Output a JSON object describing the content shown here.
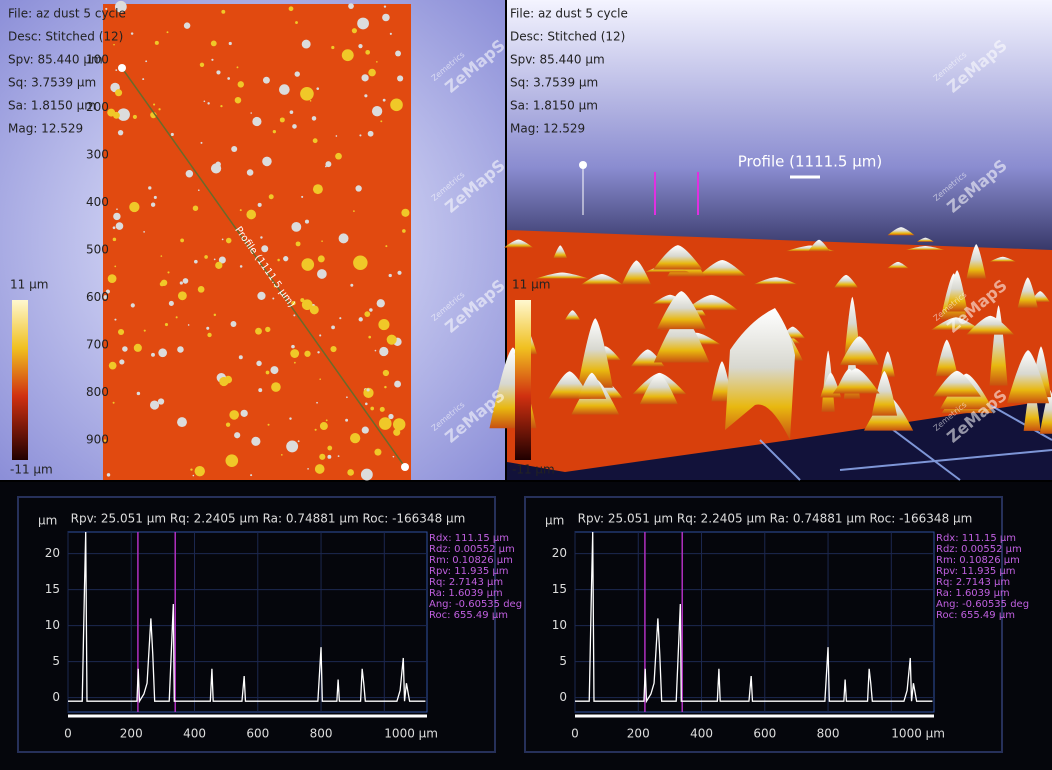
{
  "map_view": {
    "info": [
      "File: az dust 5 cycle",
      "Desc: Stitched (12)",
      "Spv: 85.440 µm",
      "Sq: 3.7539 µm",
      "Sa: 1.8150 µm",
      "Mag: 12.529"
    ],
    "y_labels": [
      "100",
      "200",
      "300",
      "400",
      "500",
      "600",
      "700",
      "800",
      "900"
    ],
    "profile_label": "Profile (1111.5 µm)",
    "scale_max": "11 µm",
    "scale_min": "-11 µm",
    "watermark_top": "Zemetrics",
    "watermark": "ZeMapS"
  },
  "view_3d": {
    "info": [
      "File: az dust 5 cycle",
      "Desc: Stitched (12)",
      "Spv: 85.440 µm",
      "Sq: 3.7539 µm",
      "Sa: 1.8150 µm",
      "Mag: 12.529"
    ],
    "profile_label": "Profile (1111.5 µm)",
    "scale_max": "11 µm",
    "scale_min": "-11 µm",
    "watermark_top": "Zemetrics",
    "watermark": "ZeMapS"
  },
  "chart_data": [
    {
      "type": "line",
      "title": "Rpv: 25.051 µm  Rq: 2.2405 µm  Ra: 0.74881 µm  Roc: -166348 µm",
      "y_label": "µm",
      "x": [
        0,
        45,
        52,
        56,
        60,
        66,
        200,
        218,
        222,
        226,
        240,
        250,
        262,
        268,
        274,
        282,
        320,
        333,
        336,
        339,
        450,
        455,
        459,
        463,
        550,
        557,
        561,
        565,
        790,
        800,
        804,
        808,
        850,
        854,
        858,
        925,
        930,
        935,
        940,
        1040,
        1050,
        1060,
        1064,
        1070,
        1080,
        1090,
        1130
      ],
      "values": [
        -0.5,
        -0.5,
        15,
        23,
        -0.5,
        -0.5,
        -0.5,
        -0.5,
        4,
        -0.5,
        0.5,
        2,
        11,
        6,
        -0.5,
        -0.5,
        -0.5,
        13,
        -0.5,
        -0.5,
        -0.5,
        4,
        -0.5,
        -0.5,
        -0.5,
        3,
        -0.5,
        -0.5,
        -0.5,
        7,
        -0.5,
        -0.5,
        -0.5,
        2.5,
        -0.5,
        -0.5,
        4,
        2,
        -0.5,
        -0.5,
        1,
        5.5,
        -0.5,
        2,
        -0.5,
        -0.5,
        -0.5
      ],
      "color": "#ffffff",
      "markers": [
        221,
        339
      ],
      "xlim": [
        0,
        1135
      ],
      "ylim": [
        -2,
        23
      ],
      "yticks": [
        0,
        5,
        10,
        15,
        20
      ],
      "xticks": [
        0,
        200,
        400,
        600,
        800,
        {
          "value": 1000,
          "label": "1000 µm"
        }
      ],
      "grid": true,
      "stats": [
        "Rdx: 111.15 µm",
        "Rdz: 0.00552 µm",
        "Rm:  0.10826 µm",
        "Rpv: 11.935 µm",
        "Rq:  2.7143 µm",
        "Ra:  1.6039 µm",
        "Ang: -0.60535 deg",
        "Roc: 655.49 µm"
      ]
    },
    {
      "type": "line",
      "title": "Rpv: 25.051 µm  Rq: 2.2405 µm  Ra: 0.74881 µm  Roc: -166348 µm",
      "y_label": "µm",
      "x": [
        0,
        45,
        52,
        56,
        60,
        66,
        200,
        218,
        222,
        226,
        240,
        250,
        262,
        268,
        274,
        282,
        320,
        333,
        336,
        339,
        450,
        455,
        459,
        463,
        550,
        557,
        561,
        565,
        790,
        800,
        804,
        808,
        850,
        854,
        858,
        925,
        930,
        935,
        940,
        1040,
        1050,
        1060,
        1064,
        1070,
        1080,
        1090,
        1130
      ],
      "values": [
        -0.5,
        -0.5,
        15,
        23,
        -0.5,
        -0.5,
        -0.5,
        -0.5,
        4,
        -0.5,
        0.5,
        2,
        11,
        6,
        -0.5,
        -0.5,
        -0.5,
        13,
        -0.5,
        -0.5,
        -0.5,
        4,
        -0.5,
        -0.5,
        -0.5,
        3,
        -0.5,
        -0.5,
        -0.5,
        7,
        -0.5,
        -0.5,
        -0.5,
        2.5,
        -0.5,
        -0.5,
        4,
        2,
        -0.5,
        -0.5,
        1,
        5.5,
        -0.5,
        2,
        -0.5,
        -0.5,
        -0.5
      ],
      "color": "#ffffff",
      "markers": [
        221,
        339
      ],
      "xlim": [
        0,
        1135
      ],
      "ylim": [
        -2,
        23
      ],
      "yticks": [
        0,
        5,
        10,
        15,
        20
      ],
      "xticks": [
        0,
        200,
        400,
        600,
        800,
        {
          "value": 1000,
          "label": "1000 µm"
        }
      ],
      "grid": true,
      "stats": [
        "Rdx: 111.15 µm",
        "Rdz: 0.00552 µm",
        "Rm:  0.10826 µm",
        "Rpv: 11.935 µm",
        "Rq:  2.7143 µm",
        "Ra:  1.6039 µm",
        "Ang: -0.60535 deg",
        "Roc: 655.49 µm"
      ]
    }
  ]
}
